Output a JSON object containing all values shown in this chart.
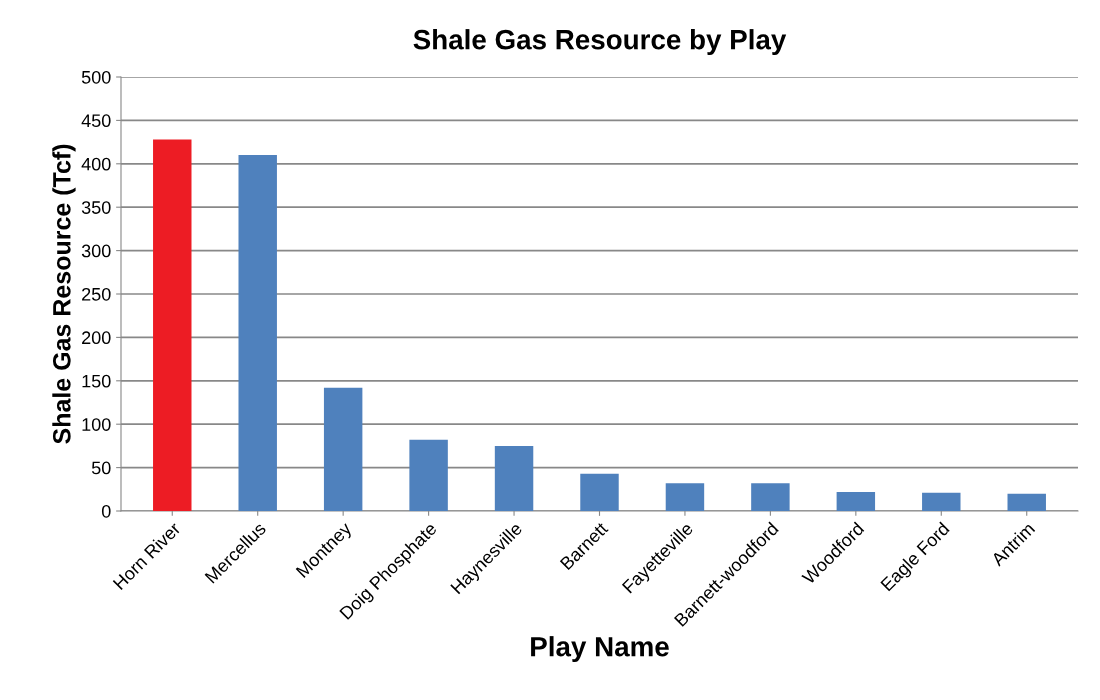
{
  "chart_data": {
    "type": "bar",
    "title": "Shale Gas Resource by Play",
    "xlabel": "Play Name",
    "ylabel": "Shale Gas Resource (Tcf)",
    "categories": [
      "Horn River",
      "Mercellus",
      "Montney",
      "Doig Phosphate",
      "Haynesville",
      "Barnett",
      "Fayetteville",
      "Barnett-woodford",
      "Woodford",
      "Eagle Ford",
      "Antrim"
    ],
    "values": [
      428,
      410,
      142,
      82,
      75,
      43,
      32,
      32,
      22,
      21,
      20
    ],
    "colors": [
      "#ed1c24",
      "#4f81bd",
      "#4f81bd",
      "#4f81bd",
      "#4f81bd",
      "#4f81bd",
      "#4f81bd",
      "#4f81bd",
      "#4f81bd",
      "#4f81bd",
      "#4f81bd"
    ],
    "ylim": [
      0,
      500
    ],
    "yticks": [
      0,
      50,
      100,
      150,
      200,
      250,
      300,
      350,
      400,
      450,
      500
    ],
    "grid": "y"
  }
}
